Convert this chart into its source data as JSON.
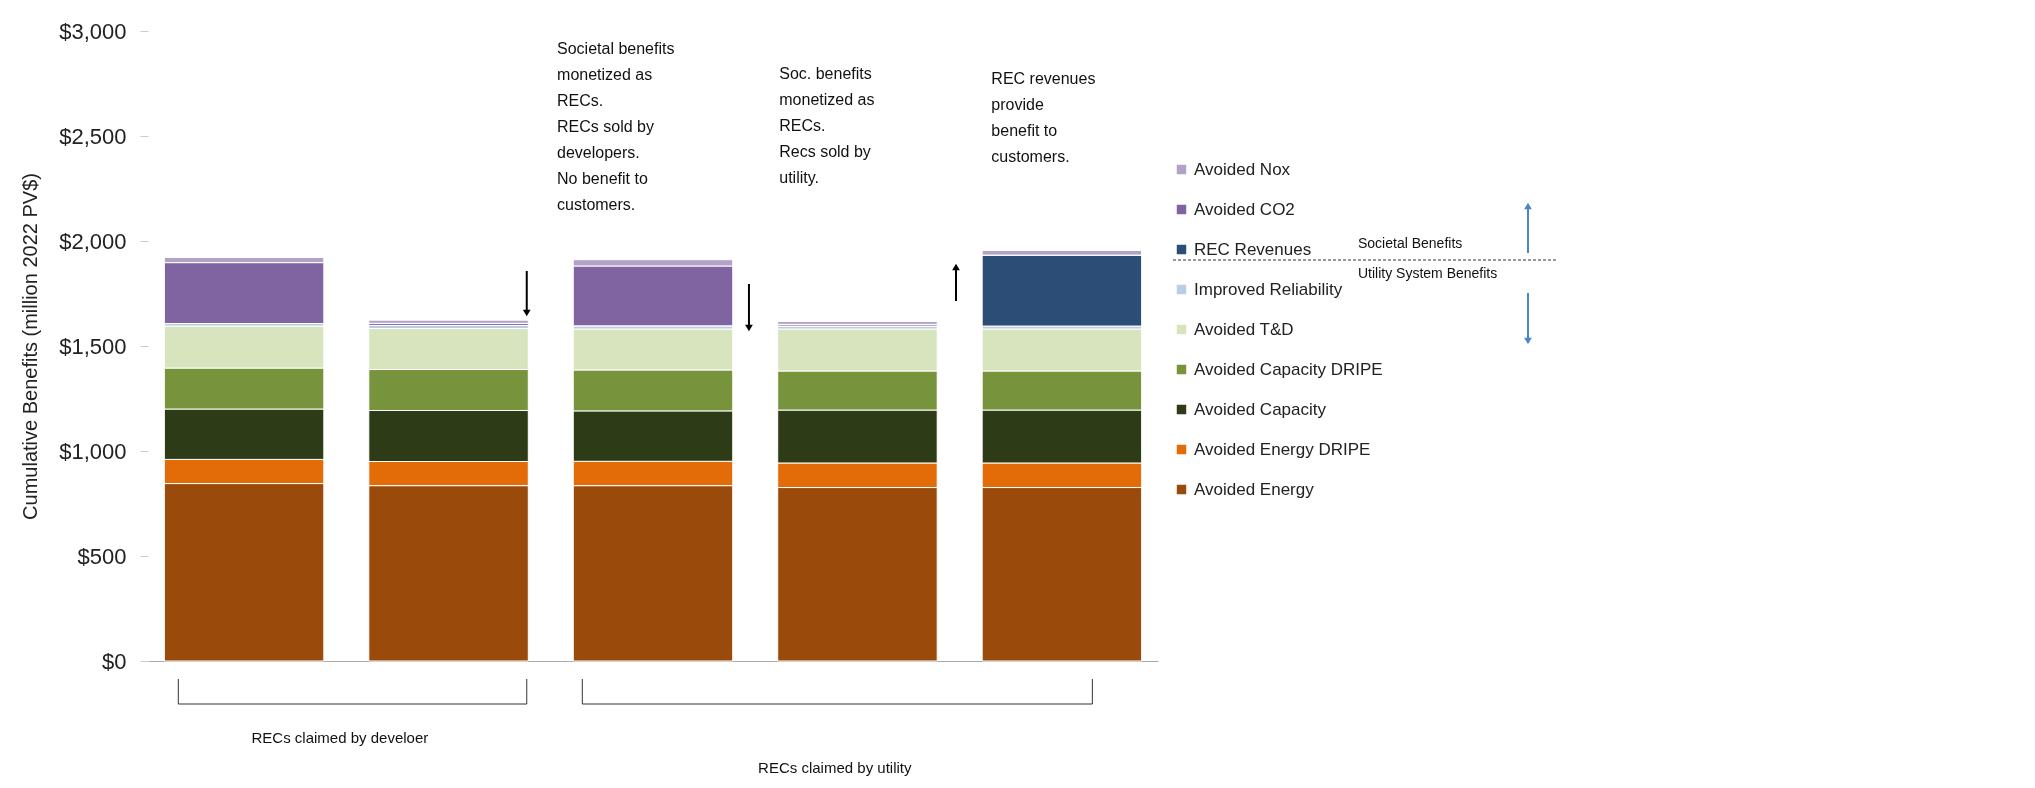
{
  "chart_data": {
    "type": "bar",
    "stacked": true,
    "ylabel": "Cumulative Benefits (million 2022 PV$)",
    "categories": [
      null,
      null,
      null,
      null,
      null
    ],
    "ylim": [
      0,
      3000
    ],
    "yticks": [
      {
        "value": 0,
        "label": "$0"
      },
      {
        "value": 500,
        "label": "$500"
      },
      {
        "value": 1000,
        "label": "$1,000"
      },
      {
        "value": 1500,
        "label": "$1,500"
      },
      {
        "value": 2000,
        "label": "$2,000"
      },
      {
        "value": 2500,
        "label": "$2,500"
      },
      {
        "value": 3000,
        "label": "$3,000"
      }
    ],
    "grid": false,
    "legend": "right",
    "series": [
      {
        "name": "Avoided Energy",
        "color": "#9a4a0b",
        "values": [
          845,
          835,
          835,
          826,
          826
        ]
      },
      {
        "name": "Avoided Energy DRIPE",
        "color": "#e36c09",
        "values": [
          115,
          115,
          116,
          117,
          117
        ]
      },
      {
        "name": "Avoided Capacity",
        "color": "#2e3b17",
        "values": [
          240,
          243,
          240,
          252,
          252
        ]
      },
      {
        "name": "Avoided Capacity DRIPE",
        "color": "#77933c",
        "values": [
          195,
          195,
          195,
          186,
          186
        ]
      },
      {
        "name": "Avoided T&D",
        "color": "#d7e4bd",
        "values": [
          200,
          195,
          195,
          200,
          200
        ]
      },
      {
        "name": "Improved Reliability",
        "color": "#b9cde5",
        "values": [
          12,
          15,
          15,
          14,
          14
        ]
      },
      {
        "name": "REC Revenues",
        "color": "#2c4d75",
        "values": [
          0,
          0,
          0,
          0,
          338
        ]
      },
      {
        "name": "Avoided CO2",
        "color": "#8064a2",
        "values": [
          290,
          10,
          285,
          8,
          0
        ]
      },
      {
        "name": "Avoided Nox",
        "color": "#b3a2c7",
        "values": [
          25,
          15,
          30,
          14,
          22
        ]
      }
    ],
    "annotations": [
      "Societal benefits\nmonetized as\nRECs.\nRECs sold by\ndevelopers.\nNo benefit to\ncustomers.",
      "Soc. benefits\nmonetized as\nRECs.\nRecs sold by\nutility.",
      "REC revenues\nprovide\nbenefit to\ncustomers.",
      "RECs claimed by develoer",
      "RECs claimed by utility",
      "Societal Benefits",
      "Utility System Benefits"
    ]
  }
}
